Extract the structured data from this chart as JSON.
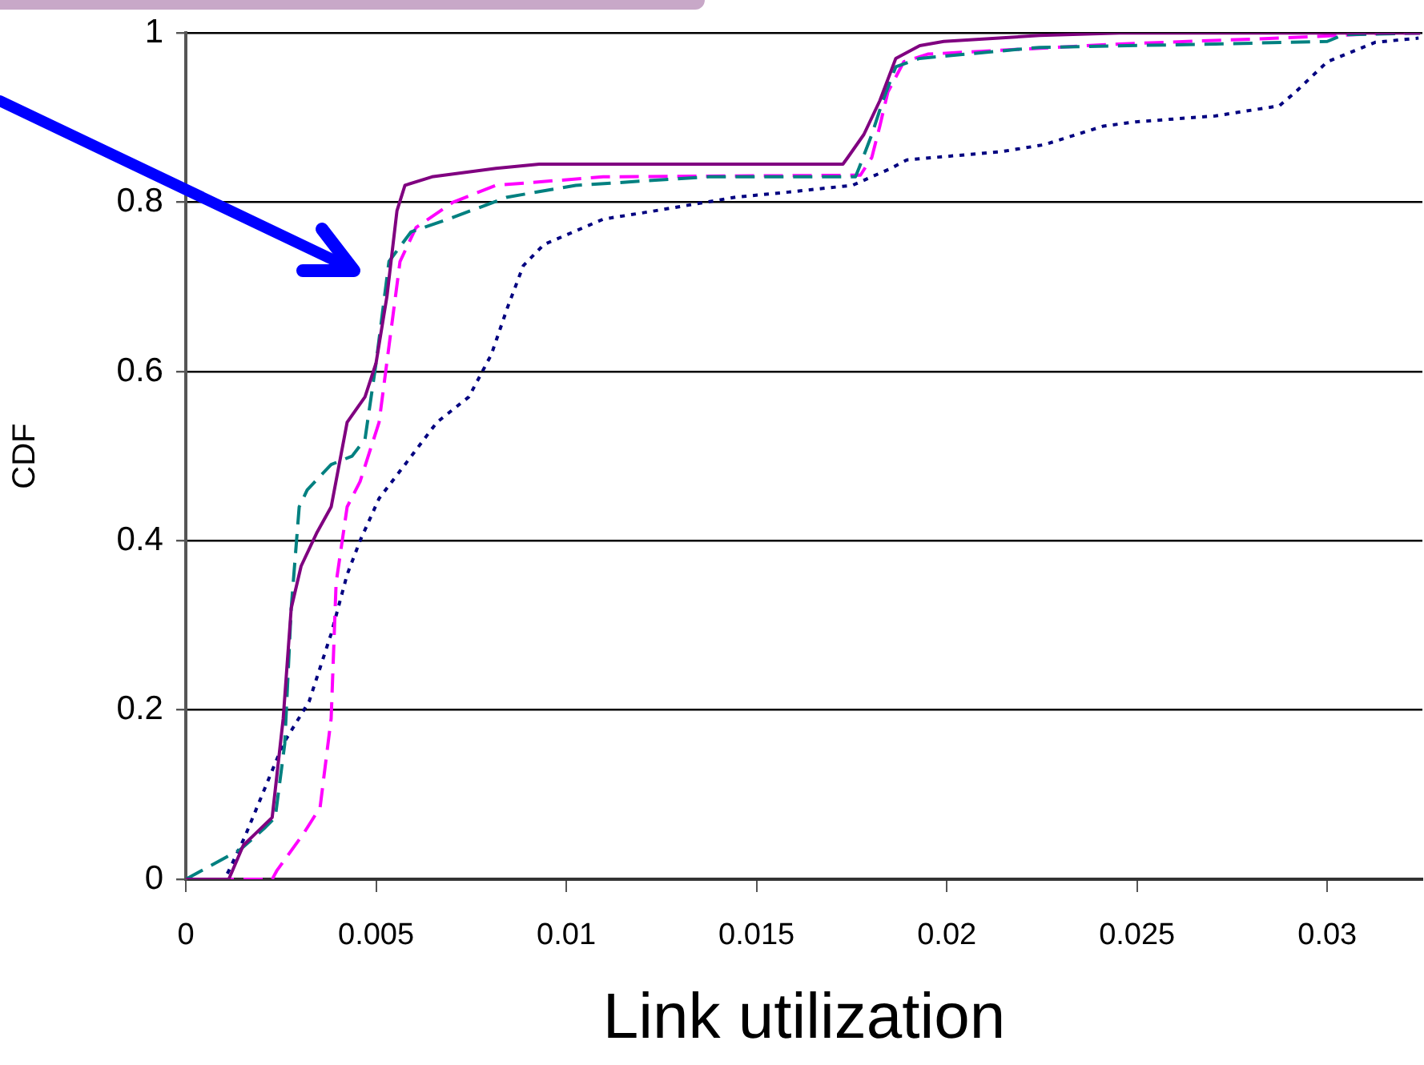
{
  "chart_data": {
    "type": "line",
    "xlabel": "Link utilization",
    "ylabel": "CDF",
    "xlim": [
      0,
      0.0325
    ],
    "xticks": [
      0,
      0.005,
      0.01,
      0.015,
      0.02,
      0.025,
      0.03
    ],
    "ylim": [
      0,
      1
    ],
    "yticks": [
      0,
      0.2,
      0.4,
      0.6,
      0.8,
      1
    ],
    "grid": "y",
    "legend": false,
    "marker": "none",
    "series": [
      {
        "color": "#800080",
        "line_style": "solid",
        "x": [
          0,
          0.00113,
          0.00151,
          0.00197,
          0.00227,
          0.00256,
          0.00277,
          0.00303,
          0.00345,
          0.00382,
          0.00424,
          0.00471,
          0.005,
          0.00529,
          0.00555,
          0.00576,
          0.00647,
          0.00815,
          0.00929,
          0.01727,
          0.0174,
          0.01782,
          0.01824,
          0.01866,
          0.01929,
          0.01992,
          0.02244,
          0.02454,
          0.03244
        ],
        "values": [
          0,
          0,
          0.04,
          0.06,
          0.073,
          0.19,
          0.32,
          0.37,
          0.41,
          0.44,
          0.54,
          0.57,
          0.61,
          0.69,
          0.79,
          0.82,
          0.83,
          0.84,
          0.845,
          0.845,
          0.853,
          0.88,
          0.92,
          0.97,
          0.985,
          0.99,
          0.997,
          1,
          1
        ]
      },
      {
        "color": "#008080",
        "line_style": "dashed",
        "x": [
          0,
          0.00143,
          0.00206,
          0.00235,
          0.0026,
          0.00277,
          0.00298,
          0.00319,
          0.00382,
          0.00437,
          0.00471,
          0.005,
          0.00534,
          0.00592,
          0.00689,
          0.00845,
          0.01025,
          0.01374,
          0.0176,
          0.01769,
          0.01803,
          0.01832,
          0.01866,
          0.01929,
          0.02244,
          0.02706,
          0.03,
          0.03042,
          0.03244
        ],
        "values": [
          0,
          0.035,
          0.06,
          0.073,
          0.16,
          0.32,
          0.44,
          0.46,
          0.49,
          0.5,
          0.52,
          0.61,
          0.73,
          0.765,
          0.78,
          0.806,
          0.82,
          0.83,
          0.83,
          0.84,
          0.88,
          0.92,
          0.96,
          0.97,
          0.983,
          0.987,
          0.99,
          0.998,
          1
        ]
      },
      {
        "color": "#ff00ff",
        "line_style": "dashed",
        "x": [
          0,
          0.00227,
          0.00239,
          0.00311,
          0.00353,
          0.00382,
          0.00395,
          0.00424,
          0.00458,
          0.00508,
          0.00534,
          0.00563,
          0.00605,
          0.00702,
          0.00815,
          0.01097,
          0.01773,
          0.01803,
          0.01824,
          0.01845,
          0.01887,
          0.0195,
          0.02454,
          0.02874,
          0.03168,
          0.03244
        ],
        "values": [
          0,
          0,
          0.01,
          0.055,
          0.085,
          0.19,
          0.35,
          0.44,
          0.47,
          0.54,
          0.63,
          0.73,
          0.77,
          0.8,
          0.82,
          0.83,
          0.832,
          0.853,
          0.89,
          0.93,
          0.966,
          0.975,
          0.987,
          0.994,
          1,
          1
        ]
      },
      {
        "color": "#000080",
        "line_style": "dotted",
        "x": [
          0,
          0.00101,
          0.00113,
          0.00155,
          0.00256,
          0.00324,
          0.00382,
          0.00424,
          0.00458,
          0.00508,
          0.00576,
          0.0066,
          0.00744,
          0.00803,
          0.00845,
          0.00887,
          0.00941,
          0.01097,
          0.01235,
          0.01445,
          0.01584,
          0.01752,
          0.01853,
          0.01895,
          0.02147,
          0.02256,
          0.02412,
          0.02496,
          0.02706,
          0.02874,
          0.02916,
          0.03,
          0.03126,
          0.0324
        ],
        "values": [
          0,
          0,
          0.01,
          0.05,
          0.16,
          0.21,
          0.29,
          0.36,
          0.4,
          0.45,
          0.49,
          0.54,
          0.57,
          0.62,
          0.675,
          0.725,
          0.75,
          0.78,
          0.79,
          0.806,
          0.812,
          0.82,
          0.84,
          0.85,
          0.86,
          0.868,
          0.89,
          0.895,
          0.902,
          0.914,
          0.93,
          0.966,
          0.989,
          0.994
        ]
      }
    ]
  }
}
